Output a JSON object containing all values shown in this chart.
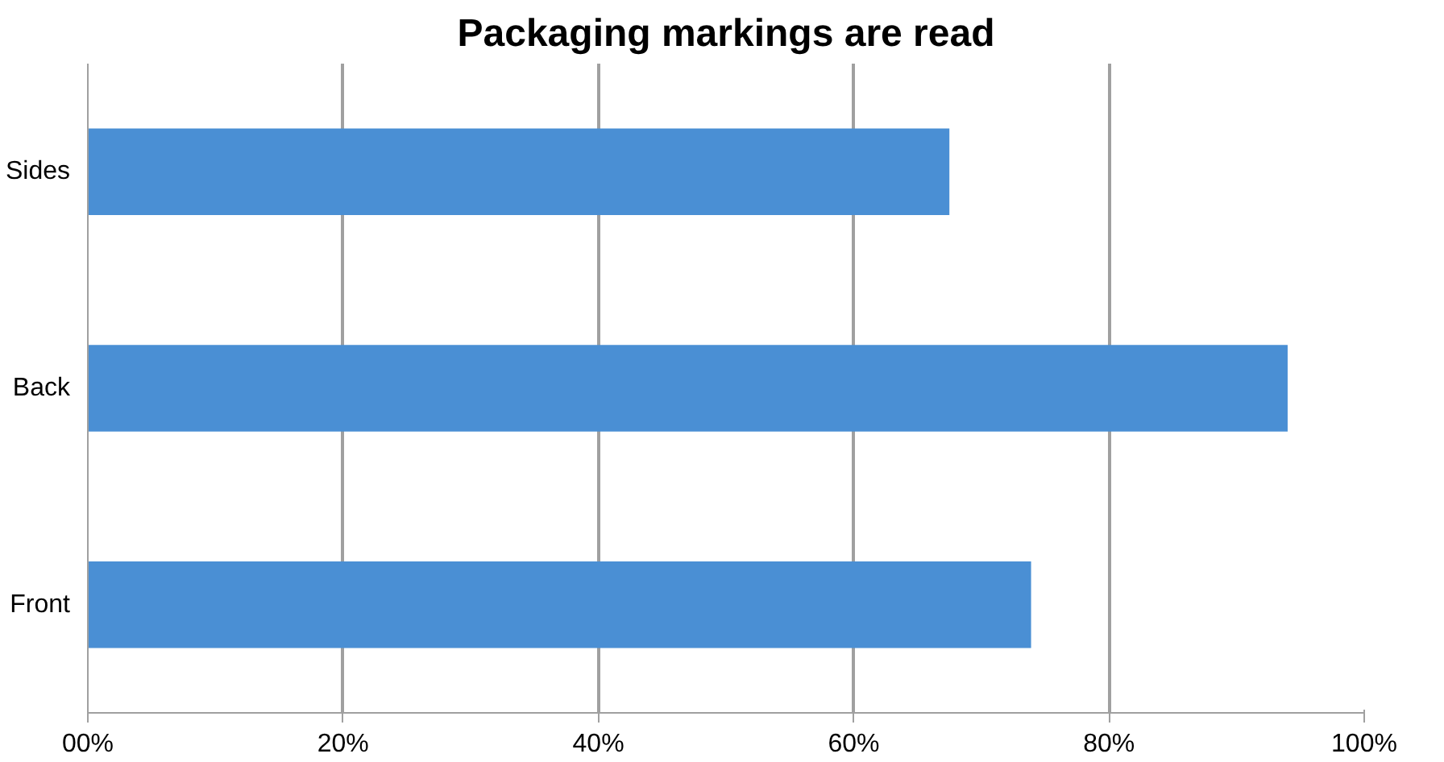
{
  "chart_data": {
    "type": "bar",
    "orientation": "horizontal",
    "title": "Packaging markings are read",
    "categories": [
      "Sides",
      "Back",
      "Front"
    ],
    "values": [
      67.5,
      94.0,
      73.9
    ],
    "color": "#4a8fd4",
    "xlim": [
      0,
      100
    ],
    "xticks": [
      {
        "value": 0,
        "label": "00%"
      },
      {
        "value": 20,
        "label": "20%"
      },
      {
        "value": 40,
        "label": "40%"
      },
      {
        "value": 60,
        "label": "60%"
      },
      {
        "value": 80,
        "label": "80%"
      },
      {
        "value": 100,
        "label": "100%"
      }
    ],
    "grid": "x"
  }
}
